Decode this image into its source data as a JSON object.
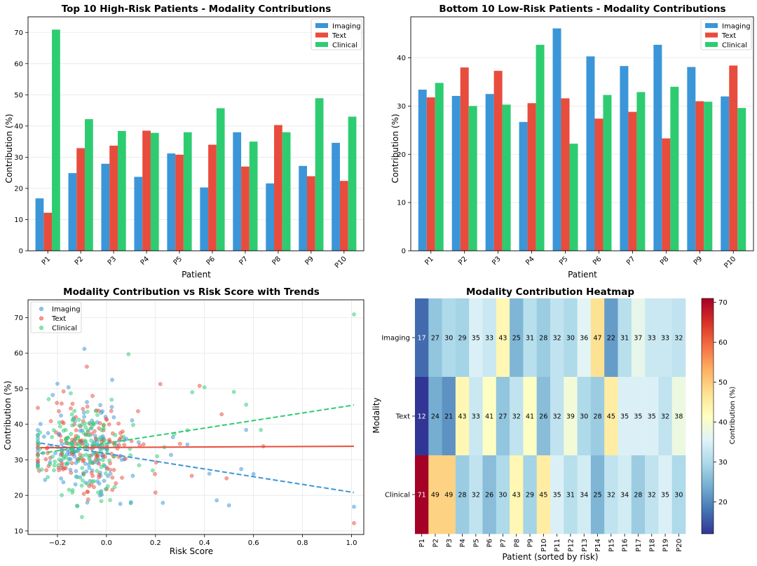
{
  "colors": {
    "imaging": "#3a96d8",
    "text": "#e84c3d",
    "clinical": "#2ecc71"
  },
  "chart_data": [
    {
      "type": "bar",
      "title": "Top 10 High-Risk Patients - Modality Contributions",
      "xlabel": "Patient",
      "ylabel": "Contribution (%)",
      "ylim": [
        0,
        75
      ],
      "yticks": [
        0,
        10,
        20,
        30,
        40,
        50,
        60,
        70
      ],
      "categories": [
        "P1",
        "P2",
        "P3",
        "P4",
        "P5",
        "P6",
        "P7",
        "P8",
        "P9",
        "P10"
      ],
      "legend": "top-right",
      "series": [
        {
          "name": "Imaging",
          "values": [
            16.8,
            24.9,
            27.9,
            23.7,
            31.2,
            20.3,
            38.0,
            21.6,
            27.2,
            34.6
          ]
        },
        {
          "name": "Text",
          "values": [
            12.2,
            32.9,
            33.7,
            38.5,
            30.8,
            34.0,
            27.0,
            40.3,
            23.9,
            22.4
          ]
        },
        {
          "name": "Clinical",
          "values": [
            70.9,
            42.2,
            38.4,
            37.8,
            38.0,
            45.7,
            35.0,
            38.0,
            48.9,
            43.0
          ]
        }
      ]
    },
    {
      "type": "bar",
      "title": "Bottom 10 Low-Risk Patients - Modality Contributions",
      "xlabel": "Patient",
      "ylabel": "Contribution (%)",
      "ylim": [
        0,
        48.5
      ],
      "yticks": [
        0,
        10,
        20,
        30,
        40
      ],
      "categories": [
        "P1",
        "P2",
        "P3",
        "P4",
        "P5",
        "P6",
        "P7",
        "P8",
        "P9",
        "P10"
      ],
      "legend": "top-right",
      "series": [
        {
          "name": "Imaging",
          "values": [
            33.4,
            32.1,
            32.5,
            26.7,
            46.1,
            40.3,
            38.3,
            42.7,
            38.1,
            32.0
          ]
        },
        {
          "name": "Text",
          "values": [
            31.8,
            38.0,
            37.3,
            30.6,
            31.6,
            27.4,
            28.8,
            23.3,
            31.0,
            38.4
          ]
        },
        {
          "name": "Clinical",
          "values": [
            34.8,
            30.0,
            30.3,
            42.7,
            22.2,
            32.3,
            32.9,
            34.0,
            30.9,
            29.6
          ]
        }
      ]
    },
    {
      "type": "scatter",
      "title": "Modality Contribution vs Risk Score with Trends",
      "xlabel": "Risk Score",
      "ylabel": "Contribution (%)",
      "xlim": [
        -0.32,
        1.05
      ],
      "ylim": [
        9,
        75
      ],
      "xticks": [
        -0.2,
        0.0,
        0.2,
        0.4,
        0.6,
        0.8,
        1.0
      ],
      "xtick_labels": [
        "−0.2",
        "0.0",
        "0.2",
        "0.4",
        "0.6",
        "0.8",
        "1.0"
      ],
      "yticks": [
        10,
        20,
        30,
        40,
        50,
        60,
        70
      ],
      "legend": "top-left",
      "series": [
        {
          "name": "Imaging",
          "trend": [
            [
              -0.27,
              34.7
            ],
            [
              1.01,
              20.8
            ]
          ]
        },
        {
          "name": "Text",
          "trend": [
            [
              -0.27,
              33.4
            ],
            [
              1.01,
              33.8
            ]
          ]
        },
        {
          "name": "Clinical",
          "trend": [
            [
              -0.27,
              31.8
            ],
            [
              1.01,
              45.4
            ]
          ]
        }
      ],
      "points": [
        {
          "s": 0,
          "x": 1.01,
          "y": 16.8
        },
        {
          "s": 1,
          "x": 1.01,
          "y": 12.2
        },
        {
          "s": 2,
          "x": 1.01,
          "y": 70.9
        },
        {
          "s": 0,
          "x": -0.09,
          "y": 61.2
        },
        {
          "s": 2,
          "x": 0.09,
          "y": 59.7
        },
        {
          "s": 1,
          "x": -0.08,
          "y": 56.2
        },
        {
          "s": 2,
          "x": 0.52,
          "y": 49.1
        },
        {
          "s": 1,
          "x": 0.22,
          "y": 51.3
        },
        {
          "s": 0,
          "x": -0.2,
          "y": 51.4
        },
        {
          "s": 2,
          "x": 0.35,
          "y": 49.0
        },
        {
          "s": 1,
          "x": 0.38,
          "y": 50.8
        },
        {
          "s": 2,
          "x": 0.4,
          "y": 50.4
        },
        {
          "s": 0,
          "x": 0.55,
          "y": 27.4
        },
        {
          "s": 0,
          "x": 0.6,
          "y": 26.0
        },
        {
          "s": 0,
          "x": 0.45,
          "y": 18.6
        },
        {
          "s": 0,
          "x": 0.5,
          "y": 17.2
        },
        {
          "s": 0,
          "x": 0.23,
          "y": 17.9
        },
        {
          "s": 0,
          "x": 0.1,
          "y": 18.1
        },
        {
          "s": 2,
          "x": -0.1,
          "y": 13.9
        },
        {
          "s": 1,
          "x": 0.2,
          "y": 20.8
        },
        {
          "s": 1,
          "x": 0.49,
          "y": 24.8
        },
        {
          "s": 2,
          "x": 0.63,
          "y": 38.4
        },
        {
          "s": 1,
          "x": 0.64,
          "y": 33.8
        },
        {
          "s": 0,
          "x": 0.57,
          "y": 38.4
        },
        {
          "s": 2,
          "x": 0.57,
          "y": 45.5
        },
        {
          "s": 1,
          "x": 0.47,
          "y": 42.8
        },
        {
          "s": 0,
          "x": 0.42,
          "y": 26.1
        },
        {
          "s": 1,
          "x": 0.3,
          "y": 34.5
        },
        {
          "s": 2,
          "x": 0.33,
          "y": 38.3
        }
      ],
      "cloud": {
        "x_center": -0.09,
        "x_spread": 0.12,
        "y_center": 33,
        "y_spread": 6.5,
        "count_per_series": 140
      }
    },
    {
      "type": "heatmap",
      "title": "Modality Contribution Heatmap",
      "xlabel": "Patient (sorted by risk)",
      "ylabel": "Modality",
      "colorbar_label": "Contribution (%)",
      "vmin": 12,
      "vmax": 71,
      "colorbar_ticks": [
        20,
        30,
        40,
        50,
        60,
        70
      ],
      "columns": [
        "P1",
        "P2",
        "P3",
        "P4",
        "P5",
        "P6",
        "P7",
        "P8",
        "P9",
        "P10",
        "P11",
        "P12",
        "P13",
        "P14",
        "P15",
        "P16",
        "P17",
        "P18",
        "P19",
        "P20"
      ],
      "rows": [
        "Imaging",
        "Text",
        "Clinical"
      ],
      "values": [
        [
          17,
          27,
          30,
          29,
          35,
          33,
          43,
          25,
          31,
          28,
          32,
          30,
          36,
          47,
          22,
          31,
          37,
          33,
          33,
          32
        ],
        [
          12,
          24,
          21,
          43,
          33,
          41,
          27,
          32,
          41,
          26,
          32,
          39,
          30,
          28,
          45,
          35,
          35,
          35,
          32,
          38
        ],
        [
          71,
          49,
          49,
          28,
          32,
          26,
          30,
          43,
          29,
          45,
          35,
          31,
          34,
          25,
          32,
          34,
          28,
          32,
          35,
          30
        ]
      ]
    }
  ]
}
